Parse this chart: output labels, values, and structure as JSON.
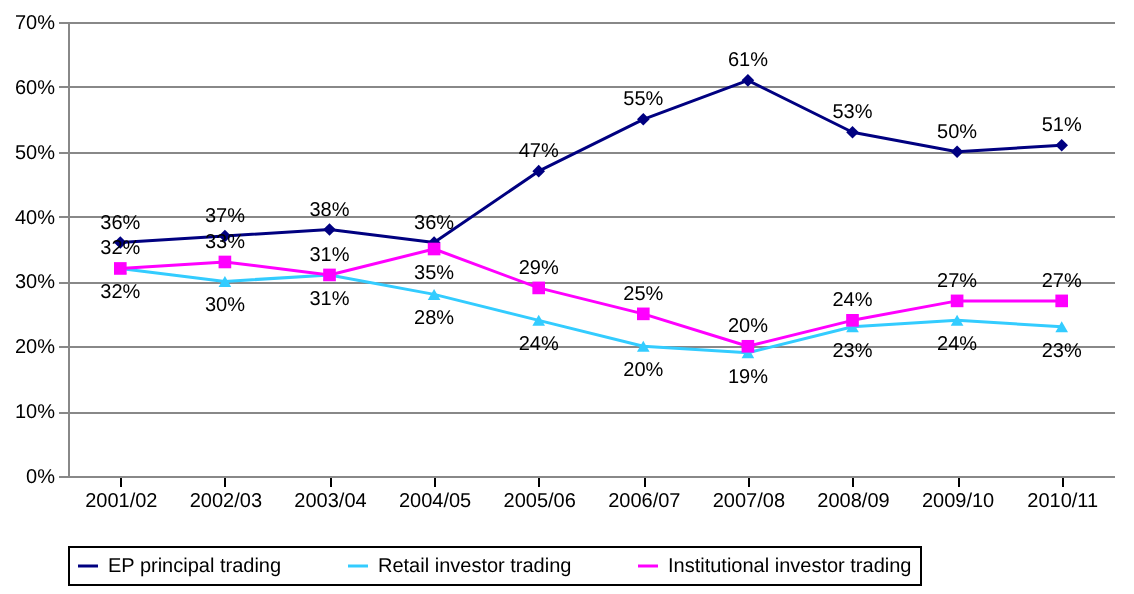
{
  "chart_data": {
    "type": "line",
    "categories": [
      "2001/02",
      "2002/03",
      "2003/04",
      "2004/05",
      "2005/06",
      "2006/07",
      "2007/08",
      "2008/09",
      "2009/10",
      "2010/11"
    ],
    "series": [
      {
        "name": "EP principal trading",
        "color": "#000080",
        "marker": "diamond",
        "values": [
          36,
          37,
          38,
          36,
          47,
          55,
          61,
          53,
          50,
          51
        ],
        "value_labels": [
          "36%",
          "37%",
          "38%",
          "36%",
          "47%",
          "55%",
          "61%",
          "53%",
          "50%",
          "51%"
        ]
      },
      {
        "name": "Retail investor trading",
        "color": "#33ccff",
        "marker": "triangle",
        "values": [
          32,
          30,
          31,
          28,
          24,
          20,
          19,
          23,
          24,
          23
        ],
        "value_labels": [
          "32%",
          "30%",
          "31%",
          "28%",
          "24%",
          "20%",
          "19%",
          "23%",
          "24%",
          "23%"
        ]
      },
      {
        "name": "Institutional investor trading",
        "color": "#ff00ff",
        "marker": "square",
        "values": [
          32,
          33,
          31,
          35,
          29,
          25,
          20,
          24,
          27,
          27
        ],
        "value_labels": [
          "32%",
          "33%",
          "31%",
          "35%",
          "29%",
          "25%",
          "20%",
          "24%",
          "27%",
          "27%"
        ]
      }
    ],
    "ylim": [
      0,
      70
    ],
    "yticks": [
      {
        "value": 0,
        "label": "0%"
      },
      {
        "value": 10,
        "label": "10%"
      },
      {
        "value": 20,
        "label": "20%"
      },
      {
        "value": 30,
        "label": "30%"
      },
      {
        "value": 40,
        "label": "40%"
      },
      {
        "value": 50,
        "label": "50%"
      },
      {
        "value": 60,
        "label": "60%"
      },
      {
        "value": 70,
        "label": "70%"
      }
    ],
    "grid": "y",
    "legend": "bottom"
  }
}
